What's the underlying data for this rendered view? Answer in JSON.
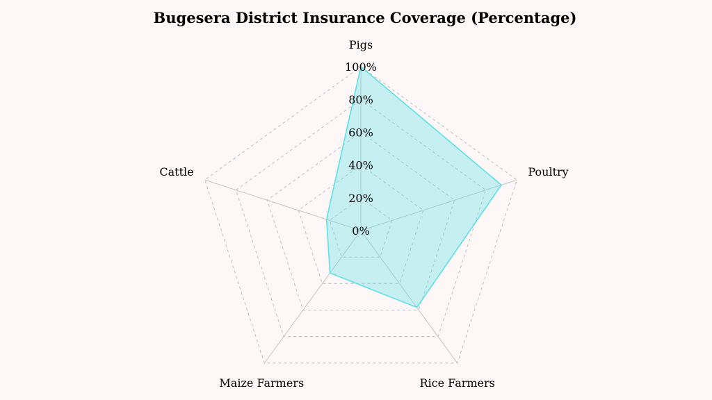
{
  "chart_data": {
    "type": "radar",
    "title": "Bugesera District Insurance Coverage (Percentage)",
    "categories": [
      "Pigs",
      "Poultry",
      "Rice Farmers",
      "Maize Farmers",
      "Cattle"
    ],
    "series": [
      {
        "values": [
          100,
          90,
          58,
          32,
          22
        ]
      }
    ],
    "r_ticks": [
      "0%",
      "20%",
      "40%",
      "60%",
      "80%",
      "100%"
    ],
    "r_range": [
      0,
      100
    ],
    "grid": true,
    "grid_style": "dashed",
    "series_color": "#5ee0e6",
    "legend": "none"
  }
}
